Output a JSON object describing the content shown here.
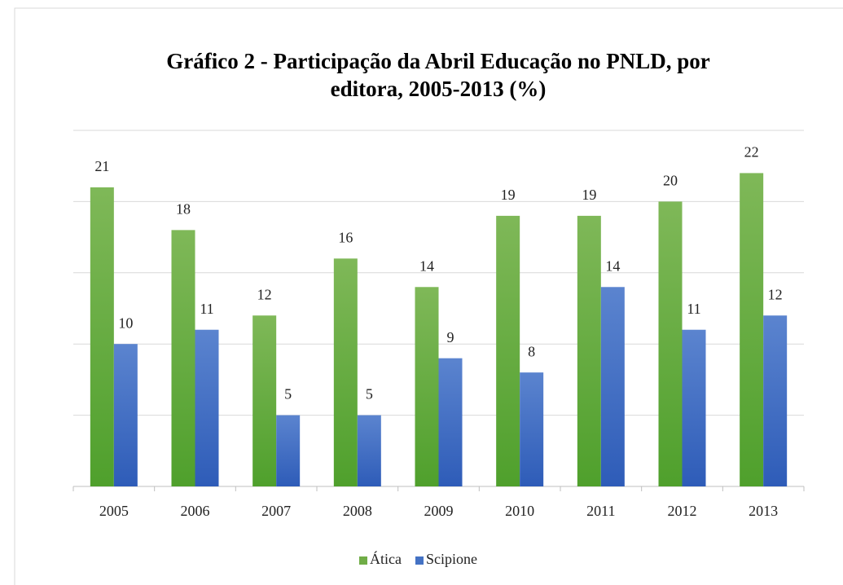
{
  "chart_data": {
    "type": "bar",
    "title": "Gráfico 2 - Participação da Abril Educação no PNLD, por editora, 2005-2013 (%)",
    "categories": [
      "2005",
      "2006",
      "2007",
      "2008",
      "2009",
      "2010",
      "2011",
      "2012",
      "2013"
    ],
    "series": [
      {
        "name": "Ática",
        "color": "#70ad47",
        "values": [
          21,
          18,
          12,
          16,
          14,
          19,
          19,
          20,
          22
        ]
      },
      {
        "name": "Scipione",
        "color": "#4472c4",
        "values": [
          10,
          11,
          5,
          5,
          9,
          8,
          14,
          11,
          12
        ]
      }
    ],
    "ylim": [
      0,
      25
    ],
    "yticks": [
      0,
      5,
      10,
      15,
      20,
      25
    ],
    "grid": true,
    "legend": "bottom"
  }
}
